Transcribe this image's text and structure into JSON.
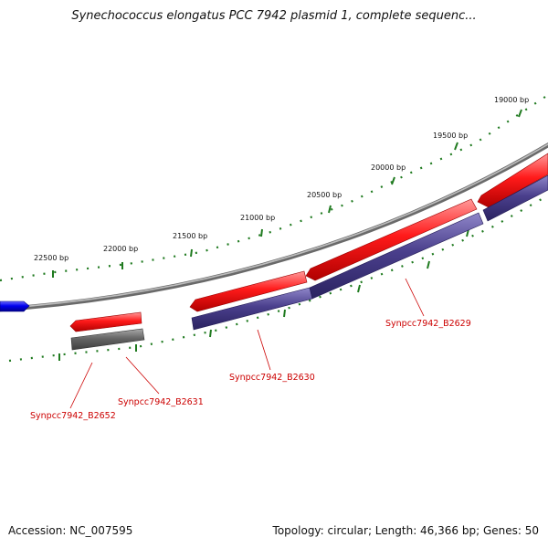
{
  "title": "Synechococcus elongatus PCC 7942 plasmid 1, complete sequenc...",
  "footer": {
    "accession": "Accession: NC_007595",
    "summary": "Topology: circular; Length: 46,366 bp; Genes: 50"
  },
  "scale_ticks": [
    {
      "label": "19000 bp",
      "bp": 19000
    },
    {
      "label": "19500 bp",
      "bp": 19500
    },
    {
      "label": "20000 bp",
      "bp": 20000
    },
    {
      "label": "20500 bp",
      "bp": 20500
    },
    {
      "label": "21000 bp",
      "bp": 21000
    },
    {
      "label": "21500 bp",
      "bp": 21500
    },
    {
      "label": "22000 bp",
      "bp": 22000
    },
    {
      "label": "22500 bp",
      "bp": 22500
    }
  ],
  "genes": [
    {
      "label": "Synpcc7942_B2629"
    },
    {
      "label": "Synpcc7942_B2630"
    },
    {
      "label": "Synpcc7942_B2631"
    },
    {
      "label": "Synpcc7942_B2652"
    }
  ],
  "colors": {
    "forward_cds": "#ff1a1a",
    "reverse_cds": "#4a3f8c",
    "gray_feature": "#666666",
    "blue_feature": "#0000ee",
    "backbone": "#8c8c8c",
    "scale_ticks": "#1f7a1f",
    "label_text": "#cc0000"
  }
}
